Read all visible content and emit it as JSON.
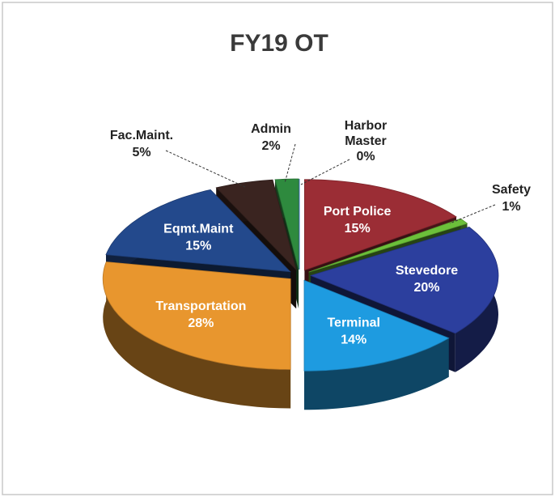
{
  "chart_data": {
    "type": "pie3d",
    "title": "FY19 OT",
    "categories": [
      "Harbor Master",
      "Port Police",
      "Safety",
      "Stevedore",
      "Terminal",
      "Transportation",
      "Eqmt.Maint",
      "Fac.Maint.",
      "Admin"
    ],
    "values": [
      0,
      15,
      1,
      20,
      14,
      28,
      15,
      5,
      2
    ],
    "value_labels": [
      "0%",
      "15%",
      "1%",
      "20%",
      "14%",
      "28%",
      "15%",
      "5%",
      "2%"
    ],
    "colors": [
      "#1f6fd0",
      "#9b2d35",
      "#6cbf3a",
      "#2c3f9e",
      "#1e9be0",
      "#e8962e",
      "#23498c",
      "#3a2420",
      "#2e8a3e"
    ]
  }
}
